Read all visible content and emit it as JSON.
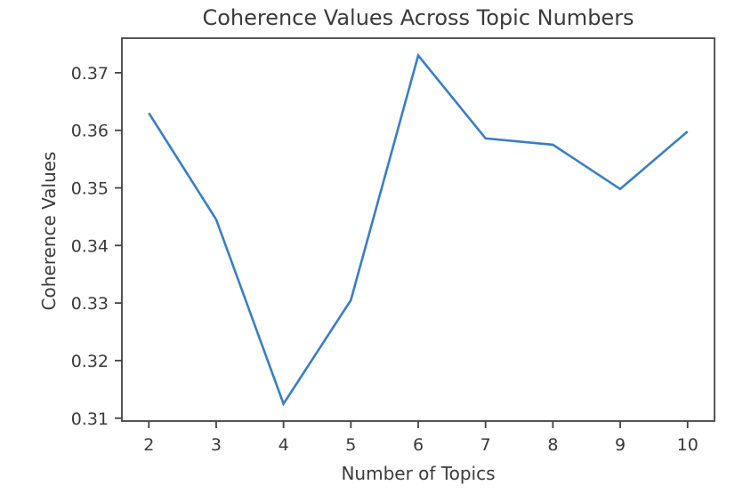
{
  "chart_data": {
    "type": "line",
    "title": "Coherence Values Across Topic Numbers",
    "xlabel": "Number of Topics",
    "ylabel": "Coherence Values",
    "series": [
      {
        "name": "coherence",
        "x": [
          2,
          3,
          4,
          5,
          6,
          7,
          8,
          9,
          10
        ],
        "values": [
          0.363,
          0.3445,
          0.3125,
          0.3305,
          0.373,
          0.3586,
          0.3575,
          0.3498,
          0.3598
        ]
      }
    ],
    "x_ticks": [
      2,
      3,
      4,
      5,
      6,
      7,
      8,
      9,
      10
    ],
    "x_tick_labels": [
      "2",
      "3",
      "4",
      "5",
      "6",
      "7",
      "8",
      "9",
      "10"
    ],
    "y_ticks": [
      0.31,
      0.32,
      0.33,
      0.34,
      0.35,
      0.36,
      0.37
    ],
    "y_tick_labels": [
      "0.31",
      "0.32",
      "0.33",
      "0.34",
      "0.35",
      "0.36",
      "0.37"
    ],
    "xlim": [
      1.6,
      10.4
    ],
    "ylim": [
      0.3095,
      0.376
    ],
    "grid": false,
    "legend": "none",
    "colors": {
      "line": "#3a7dc2",
      "text": "#3a3a3a",
      "spine": "#424242",
      "background": "#ffffff"
    }
  }
}
